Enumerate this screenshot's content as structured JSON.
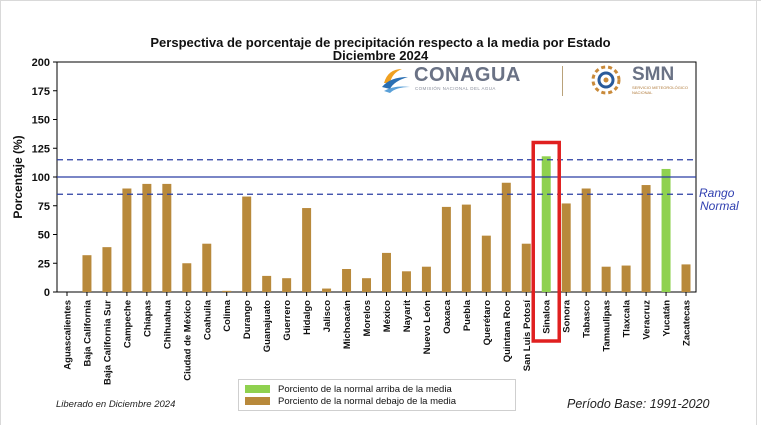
{
  "title_line1": "Perspectiva de porcentaje de precipitación respecto a la media por Estado",
  "title_line2": "Diciembre 2024",
  "released": "Liberado en Diciembre 2024",
  "period": "Período Base: 1991-2020",
  "rango_label_1": "Rango",
  "rango_label_2": "Normal",
  "logo": {
    "conagua": "CONAGUA",
    "conagua_sub": "COMISIÓN NACIONAL DEL AGUA",
    "smn": "SMN",
    "smn_sub": "SERVICIO METEOROLÓGICO NACIONAL"
  },
  "legend": {
    "above_label": "Porciento de la normal arriba de la media",
    "below_label": "Porciento de la normal debajo de la media"
  },
  "colors": {
    "above": "#8fd14f",
    "below": "#b8893b",
    "reference": "#2b3fa3",
    "highlight": "#e02020"
  },
  "chart_data": {
    "type": "bar",
    "title": "Perspectiva de porcentaje de precipitación respecto a la media por Estado",
    "ylabel": "Porcentaje (%)",
    "xlabel": "",
    "ylim": [
      0,
      200
    ],
    "yticks": [
      0,
      25,
      50,
      75,
      100,
      125,
      150,
      175,
      200
    ],
    "categories": [
      "Aguascalientes",
      "Baja California",
      "Baja California Sur",
      "Campeche",
      "Chiapas",
      "Chihuahua",
      "Ciudad de México",
      "Coahuila",
      "Colima",
      "Durango",
      "Guanajuato",
      "Guerrero",
      "Hidalgo",
      "Jalisco",
      "Michoacán",
      "Morelos",
      "México",
      "Nayarit",
      "Nuevo León",
      "Oaxaca",
      "Puebla",
      "Querétaro",
      "Quintana Roo",
      "San Luis Potosí",
      "Sinaloa",
      "Sonora",
      "Tabasco",
      "Tamaulipas",
      "Tlaxcala",
      "Veracruz",
      "Yucatán",
      "Zacatecas"
    ],
    "values": [
      0,
      32,
      39,
      90,
      94,
      94,
      25,
      42,
      1,
      83,
      14,
      12,
      73,
      3,
      20,
      12,
      34,
      18,
      22,
      74,
      76,
      49,
      95,
      42,
      118,
      77,
      90,
      22,
      23,
      93,
      107,
      24
    ],
    "reference_lines": [
      {
        "value": 115,
        "style": "dashed"
      },
      {
        "value": 100,
        "style": "solid"
      },
      {
        "value": 85,
        "style": "dashed"
      }
    ],
    "highlighted_category": "Sinaloa",
    "grid": false,
    "legend_position": "bottom-center"
  }
}
